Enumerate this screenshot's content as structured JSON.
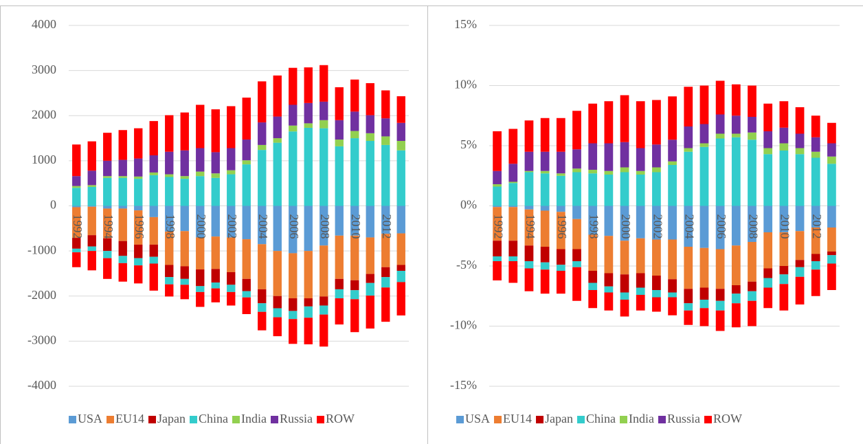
{
  "chart_data": [
    {
      "type": "bar",
      "stacked": true,
      "grid": true,
      "categories": [
        "1992",
        null,
        "1994",
        null,
        "1996",
        null,
        "1998",
        null,
        "2000",
        null,
        "2002",
        null,
        "2004",
        null,
        "2006",
        null,
        "2008",
        null,
        "2010",
        null,
        "2012",
        null
      ],
      "ylim": [
        -4000,
        4000
      ],
      "yticks": [
        -4000,
        -3000,
        -2000,
        -1000,
        0,
        1000,
        2000,
        3000,
        4000
      ],
      "series": [
        {
          "name": "USA",
          "color": "#5b9bd5",
          "values": [
            -30,
            -20,
            -60,
            -60,
            -100,
            -250,
            -570,
            -560,
            -700,
            -680,
            -700,
            -740,
            -850,
            -1000,
            -1050,
            -1000,
            -880,
            -660,
            -660,
            -700,
            -620,
            -610
          ]
        },
        {
          "name": "EU14",
          "color": "#ed7d31",
          "values": [
            -680,
            -630,
            -660,
            -720,
            -760,
            -610,
            -740,
            -780,
            -710,
            -720,
            -770,
            -880,
            -1000,
            -1000,
            -1000,
            -1050,
            -1130,
            -960,
            -990,
            -810,
            -740,
            -700
          ]
        },
        {
          "name": "Japan",
          "color": "#c00000",
          "values": [
            -240,
            -250,
            -280,
            -330,
            -300,
            -270,
            -270,
            -280,
            -370,
            -300,
            -280,
            -270,
            -310,
            -270,
            -280,
            -180,
            -200,
            -230,
            -220,
            -200,
            -220,
            -130
          ]
        },
        {
          "name": "China",
          "color": "#33cccc",
          "values": [
            400,
            420,
            620,
            620,
            600,
            680,
            640,
            600,
            660,
            620,
            700,
            920,
            1240,
            1400,
            1650,
            1730,
            1720,
            1320,
            1500,
            1440,
            1350,
            1230
          ],
          "negative_values": [
            -80,
            -100,
            -160,
            -160,
            -160,
            -150,
            -160,
            -130,
            -130,
            -130,
            -160,
            -140,
            -190,
            -200,
            -180,
            -250,
            -200,
            -200,
            -200,
            -280,
            -230,
            -250
          ]
        },
        {
          "name": "India",
          "color": "#92d050",
          "values": [
            40,
            40,
            40,
            40,
            50,
            60,
            60,
            60,
            100,
            100,
            90,
            90,
            110,
            100,
            130,
            100,
            180,
            150,
            160,
            170,
            190,
            210
          ]
        },
        {
          "name": "Russia",
          "color": "#7030a0",
          "values": [
            220,
            320,
            340,
            360,
            400,
            380,
            500,
            570,
            520,
            470,
            490,
            460,
            500,
            480,
            460,
            450,
            410,
            430,
            430,
            400,
            400,
            400
          ]
        },
        {
          "name": "ROW",
          "color": "#ff0000",
          "values": [
            700,
            650,
            620,
            660,
            670,
            760,
            810,
            840,
            960,
            950,
            930,
            930,
            910,
            910,
            820,
            790,
            810,
            730,
            710,
            710,
            620,
            590
          ],
          "negative_values": [
            -330,
            -430,
            -460,
            -410,
            -400,
            -600,
            -270,
            -320,
            -330,
            -310,
            -300,
            -370,
            -410,
            -420,
            -550,
            -590,
            -710,
            -580,
            -730,
            -730,
            -760,
            -740
          ]
        }
      ]
    },
    {
      "type": "bar",
      "stacked": true,
      "grid": true,
      "categories": [
        "1992",
        null,
        "1994",
        null,
        "1996",
        null,
        "1998",
        null,
        "2000",
        null,
        "2002",
        null,
        "2004",
        null,
        "2006",
        null,
        "2008",
        null,
        "2010",
        null,
        "2012",
        null
      ],
      "ylim": [
        -15,
        15
      ],
      "yticks": [
        {
          "value": -15,
          "label": "-15%"
        },
        {
          "value": -10,
          "label": "-10%"
        },
        {
          "value": -5,
          "label": "-5%"
        },
        {
          "value": 0,
          "label": "0%"
        },
        {
          "value": 5,
          "label": "5%"
        },
        {
          "value": 10,
          "label": "10%"
        },
        {
          "value": 15,
          "label": "15%"
        }
      ],
      "series": [
        {
          "name": "USA",
          "color": "#5b9bd5",
          "values": [
            -0.1,
            -0.1,
            -0.3,
            -0.4,
            -0.5,
            -1.1,
            -2.4,
            -2.5,
            -2.9,
            -2.7,
            -2.8,
            -2.8,
            -3.4,
            -3.5,
            -3.6,
            -3.3,
            -3.0,
            -2.2,
            -2.2,
            -2.1,
            -1.8,
            -1.8
          ]
        },
        {
          "name": "EU14",
          "color": "#ed7d31",
          "values": [
            -2.8,
            -2.8,
            -3.0,
            -3.0,
            -3.1,
            -2.5,
            -3.0,
            -3.1,
            -2.8,
            -2.9,
            -3.0,
            -3.3,
            -3.5,
            -3.3,
            -3.3,
            -3.3,
            -3.3,
            -3.0,
            -2.8,
            -2.4,
            -2.2,
            -2.0
          ]
        },
        {
          "name": "Japan",
          "color": "#c00000",
          "values": [
            -1.3,
            -1.3,
            -1.3,
            -1.3,
            -1.3,
            -1.0,
            -1.0,
            -1.1,
            -1.5,
            -1.2,
            -1.2,
            -1.1,
            -1.2,
            -1.0,
            -1.0,
            -0.7,
            -0.8,
            -0.8,
            -0.7,
            -0.6,
            -0.6,
            -0.3
          ]
        },
        {
          "name": "China",
          "color": "#33cccc",
          "values": [
            1.6,
            1.9,
            2.8,
            2.7,
            2.5,
            2.8,
            2.7,
            2.6,
            2.8,
            2.6,
            2.8,
            3.4,
            4.5,
            4.9,
            5.6,
            5.7,
            5.5,
            4.3,
            4.6,
            4.3,
            4.0,
            3.5
          ],
          "negative_values": [
            -0.4,
            -0.4,
            -0.6,
            -0.6,
            -0.5,
            -0.5,
            -0.6,
            -0.5,
            -0.6,
            -0.6,
            -0.6,
            -0.4,
            -0.6,
            -0.7,
            -0.8,
            -0.8,
            -0.8,
            -0.8,
            -0.8,
            -0.8,
            -0.7,
            -0.7
          ]
        },
        {
          "name": "India",
          "color": "#92d050",
          "values": [
            0.2,
            0.1,
            0.1,
            0.2,
            0.2,
            0.3,
            0.3,
            0.3,
            0.4,
            0.3,
            0.4,
            0.3,
            0.3,
            0.3,
            0.4,
            0.3,
            0.6,
            0.5,
            0.6,
            0.5,
            0.5,
            0.6
          ]
        },
        {
          "name": "Russia",
          "color": "#7030a0",
          "values": [
            1.1,
            1.5,
            1.6,
            1.6,
            1.8,
            1.6,
            2.2,
            2.3,
            2.1,
            1.9,
            1.9,
            1.8,
            1.8,
            1.6,
            1.6,
            1.5,
            1.3,
            1.4,
            1.3,
            1.2,
            1.2,
            1.1
          ]
        },
        {
          "name": "ROW",
          "color": "#ff0000",
          "values": [
            3.3,
            2.9,
            2.6,
            2.8,
            2.8,
            3.2,
            3.3,
            3.5,
            3.9,
            3.9,
            3.7,
            3.6,
            3.3,
            3.2,
            2.8,
            2.6,
            2.6,
            2.3,
            2.2,
            2.2,
            1.8,
            1.7
          ],
          "negative_values": [
            -1.6,
            -1.8,
            -1.9,
            -2.0,
            -1.9,
            -2.8,
            -1.5,
            -1.5,
            -1.4,
            -1.3,
            -1.2,
            -1.5,
            -1.2,
            -1.5,
            -1.7,
            -2.0,
            -2.1,
            -1.7,
            -2.2,
            -2.3,
            -2.2,
            -2.2
          ]
        }
      ]
    }
  ]
}
